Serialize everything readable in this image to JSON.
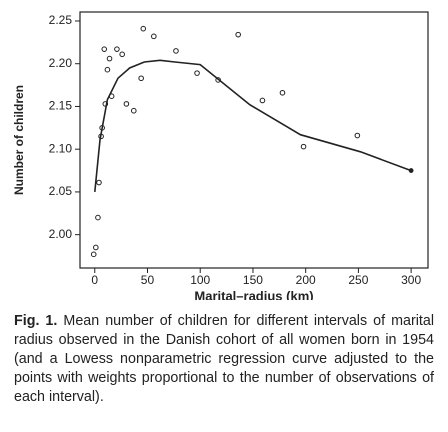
{
  "chart_data": {
    "type": "scatter",
    "x_label": "Marital–radius (km)",
    "y_label": "Number of children",
    "xlim": [
      -14,
      316
    ],
    "ylim": [
      1.961,
      2.2605
    ],
    "xticks": [
      0,
      50,
      100,
      150,
      200,
      250,
      300
    ],
    "yticks": [
      {
        "value": 2.0,
        "label": "2.00"
      },
      2.05,
      {
        "value": 2.1,
        "label": "2.10"
      },
      2.15,
      {
        "value": 2.2,
        "label": "2.20"
      },
      2.25
    ],
    "points": {
      "x": [
        -1,
        1,
        3,
        4,
        6,
        7,
        9,
        10,
        12,
        14,
        16,
        21,
        26,
        30,
        37,
        44,
        46,
        56,
        77,
        97,
        117,
        136,
        159,
        178,
        198,
        249
      ],
      "y": [
        1.977,
        1.985,
        2.02,
        2.061,
        2.115,
        2.125,
        2.217,
        2.153,
        2.193,
        2.206,
        2.162,
        2.217,
        2.211,
        2.153,
        2.145,
        2.183,
        2.241,
        2.232,
        2.215,
        2.189,
        2.181,
        2.234,
        2.157,
        2.166,
        2.103,
        2.116
      ]
    },
    "curve": {
      "x": [
        0,
        5,
        12,
        22,
        33,
        47,
        62,
        76,
        100,
        147,
        195,
        252,
        300
      ],
      "y": [
        2.05,
        2.111,
        2.158,
        2.183,
        2.195,
        2.202,
        2.204,
        2.202,
        2.199,
        2.152,
        2.117,
        2.097,
        2.075
      ]
    },
    "color": "#222222"
  },
  "caption": {
    "label": "Fig. 1.",
    "text": "Mean number of children for different intervals of marital radius observed in the Danish cohort of all women born in 1954 (and a Lowess nonparametric regression curve adjusted to the points with weights proportional to the number of observations of each interval)."
  }
}
